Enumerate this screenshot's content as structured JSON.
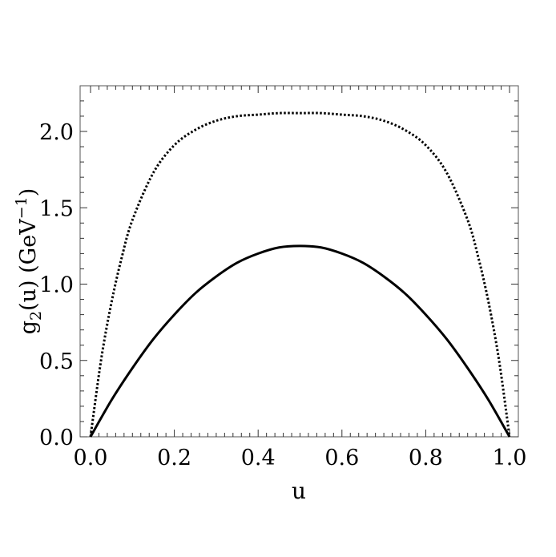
{
  "chart_data": {
    "type": "line",
    "xlabel": "u",
    "ylabel": {
      "base": "g",
      "subscript": "2",
      "rest": "(u) (GeV",
      "superscript": "−1",
      "close": ")"
    },
    "xlim": [
      0.0,
      1.0
    ],
    "ylim": [
      0.0,
      2.3
    ],
    "x_ticks": [
      {
        "value": 0.0,
        "label": "0.0"
      },
      {
        "value": 0.2,
        "label": "0.2"
      },
      {
        "value": 0.4,
        "label": "0.4"
      },
      {
        "value": 0.6,
        "label": "0.6"
      },
      {
        "value": 0.8,
        "label": "0.8"
      },
      {
        "value": 1.0,
        "label": "1.0"
      }
    ],
    "y_ticks": [
      {
        "value": 0.0,
        "label": "0.0"
      },
      {
        "value": 0.5,
        "label": "0.5"
      },
      {
        "value": 1.0,
        "label": "1.0"
      },
      {
        "value": 1.5,
        "label": "1.5"
      },
      {
        "value": 2.0,
        "label": "2.0"
      }
    ],
    "grid": false,
    "series": [
      {
        "style": "solid",
        "x": [
          0.0,
          0.05,
          0.1,
          0.15,
          0.2,
          0.25,
          0.3,
          0.35,
          0.4,
          0.45,
          0.5,
          0.55,
          0.6,
          0.65,
          0.7,
          0.75,
          0.8,
          0.85,
          0.9,
          0.95,
          1.0
        ],
        "y": [
          0.0,
          0.24,
          0.45,
          0.64,
          0.8,
          0.94,
          1.05,
          1.14,
          1.2,
          1.24,
          1.25,
          1.24,
          1.2,
          1.14,
          1.05,
          0.94,
          0.8,
          0.64,
          0.45,
          0.24,
          0.0
        ]
      },
      {
        "style": "dotted",
        "x": [
          0.0,
          0.025,
          0.05,
          0.075,
          0.1,
          0.15,
          0.2,
          0.25,
          0.3,
          0.35,
          0.4,
          0.45,
          0.5,
          0.55,
          0.6,
          0.65,
          0.7,
          0.75,
          0.8,
          0.85,
          0.9,
          0.925,
          0.95,
          0.975,
          1.0
        ],
        "y": [
          0.0,
          0.5,
          0.88,
          1.18,
          1.42,
          1.73,
          1.91,
          2.01,
          2.07,
          2.1,
          2.11,
          2.12,
          2.12,
          2.12,
          2.11,
          2.1,
          2.07,
          2.01,
          1.91,
          1.73,
          1.42,
          1.18,
          0.88,
          0.5,
          0.0
        ]
      }
    ]
  }
}
